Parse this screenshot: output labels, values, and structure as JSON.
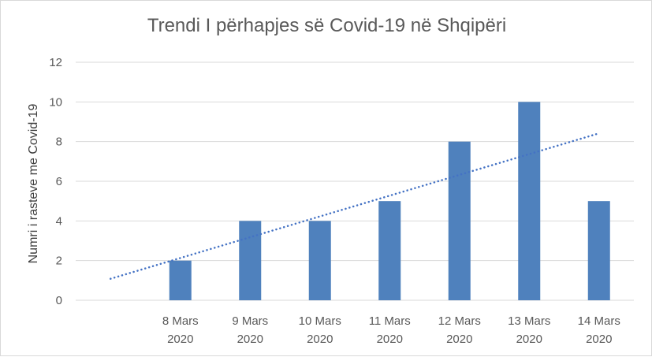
{
  "chart_data": {
    "type": "bar",
    "title": "Trendi I përhapjes së Covid-19 në Shqipëri",
    "xlabel": "",
    "ylabel": "Numri i rasteve me Covid-19",
    "categories": [
      [
        "",
        ""
      ],
      [
        "8 Mars",
        "2020"
      ],
      [
        "9 Mars",
        "2020"
      ],
      [
        "10 Mars",
        "2020"
      ],
      [
        "11 Mars",
        "2020"
      ],
      [
        "12 Mars",
        "2020"
      ],
      [
        "13 Mars",
        "2020"
      ],
      [
        "14 Mars",
        "2020"
      ]
    ],
    "values": [
      0,
      2,
      4,
      4,
      5,
      8,
      10,
      5
    ],
    "ylim": [
      0,
      12
    ],
    "yticks": [
      0,
      2,
      4,
      6,
      8,
      10,
      12
    ],
    "grid": true,
    "trendline": {
      "type": "linear",
      "style": "dotted",
      "color": "#4472c4"
    },
    "bar_color": "#4f81bd",
    "grid_color": "#d9d9d9",
    "text_color": "#595959"
  }
}
